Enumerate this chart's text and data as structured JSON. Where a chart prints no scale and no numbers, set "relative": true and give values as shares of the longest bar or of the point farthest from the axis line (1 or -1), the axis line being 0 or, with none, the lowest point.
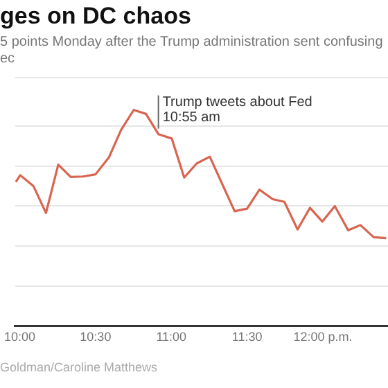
{
  "chart_data": {
    "type": "line",
    "title": "ges on DC chaos",
    "subtitle": "5 points Monday after the Trump administration sent confusing ec",
    "relative": true,
    "grid": "y",
    "marker": "none",
    "line_style": "solid",
    "legend": false,
    "xlim": [
      9.97,
      12.43
    ],
    "xticks": [
      {
        "value": 10,
        "label": "10:00"
      },
      {
        "value": 10.5,
        "label": "10:30"
      },
      {
        "value": 11,
        "label": "11:00"
      },
      {
        "value": 11.5,
        "label": "11:30"
      },
      {
        "value": 12,
        "label": "12:00 p.m."
      }
    ],
    "series": [
      {
        "color": "#d9644f",
        "x": [
          9.974,
          10.003,
          10.09,
          10.173,
          10.254,
          10.336,
          10.418,
          10.5,
          10.588,
          10.669,
          10.752,
          10.833,
          10.915,
          11.003,
          11.085,
          11.167,
          11.254,
          11.336,
          11.418,
          11.5,
          11.582,
          11.669,
          11.746,
          11.833,
          11.915,
          11.997,
          12.079,
          12.167,
          12.248,
          12.336,
          12.418
        ],
        "values": [
          0.667,
          0.698,
          0.648,
          0.523,
          0.747,
          0.69,
          0.692,
          0.702,
          0.78,
          0.908,
          1,
          0.982,
          0.888,
          0.868,
          0.687,
          0.752,
          0.784,
          0.657,
          0.531,
          0.543,
          0.631,
          0.587,
          0.575,
          0.447,
          0.547,
          0.483,
          0.555,
          0.443,
          0.467,
          0.411,
          0.407
        ]
      }
    ],
    "annotations": [
      {
        "text": "Trump tweets about Fed\n10:55 am",
        "x": 10.915,
        "y": 0.888
      },
      "Goldman/Caroline Matthews"
    ]
  }
}
